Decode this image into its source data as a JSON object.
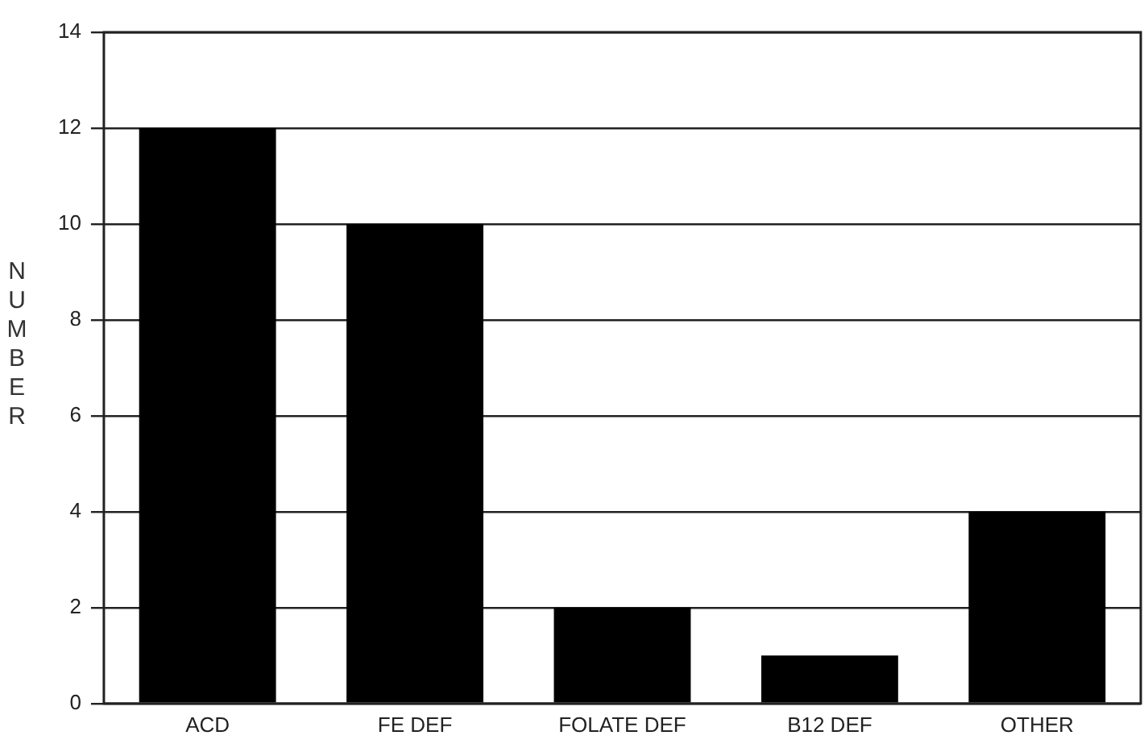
{
  "chart_data": {
    "type": "bar",
    "ylabel": "NUMBER",
    "categories": [
      "ACD",
      "FE DEF",
      "FOLATE DEF",
      "B12 DEF",
      "OTHER"
    ],
    "values": [
      12,
      10,
      2,
      1,
      4
    ],
    "color": "#000000",
    "ylim": [
      0,
      14
    ],
    "yticks": [
      0,
      2,
      4,
      6,
      8,
      10,
      12,
      14
    ],
    "grid": "y",
    "legend": false
  }
}
